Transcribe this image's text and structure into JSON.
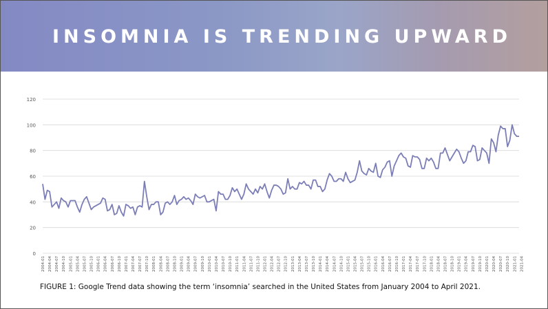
{
  "slide": {
    "title": "INSOMNIA IS TRENDING UPWARD",
    "caption": "FIGURE 1: Google Trend data showing the term ‘insomnia’ searched in the United States from January 2004 to April 2021."
  },
  "colors": {
    "line": "#7b7db6",
    "grid": "#d9d9d9",
    "axis_text": "#555555"
  },
  "chart_data": {
    "type": "line",
    "title": "",
    "xlabel": "",
    "ylabel": "",
    "ylim": [
      0,
      120
    ],
    "yticks": [
      0,
      20,
      40,
      60,
      80,
      100,
      120
    ],
    "grid": true,
    "x_start": "2004-01",
    "x_tick_labels": [
      "2004-01",
      "2004-04",
      "2004-07",
      "2004-10",
      "2005-01",
      "2005-04",
      "2005-07",
      "2005-10",
      "2006-01",
      "2006-04",
      "2006-07",
      "2006-10",
      "2007-01",
      "2007-04",
      "2007-07",
      "2007-10",
      "2008-01",
      "2008-04",
      "2008-07",
      "2008-10",
      "2009-01",
      "2009-04",
      "2009-07",
      "2009-10",
      "2010-01",
      "2010-04",
      "2010-07",
      "2010-10",
      "2011-01",
      "2011-04",
      "2011-07",
      "2011-10",
      "2012-01",
      "2012-04",
      "2012-07",
      "2012-10",
      "2013-01",
      "2013-04",
      "2013-07",
      "2013-10",
      "2014-01",
      "2014-04",
      "2014-07",
      "2014-10",
      "2015-01",
      "2015-04",
      "2015-07",
      "2015-10",
      "2016-01",
      "2016-04",
      "2016-07",
      "2016-10",
      "2017-01",
      "2017-04",
      "2017-07",
      "2017-10",
      "2018-01",
      "2018-04",
      "2018-07",
      "2018-10",
      "2019-01",
      "2019-04",
      "2019-07",
      "2019-10",
      "2020-01",
      "2020-04",
      "2020-07",
      "2020-10",
      "2021-01",
      "2021-04"
    ],
    "series": [
      {
        "values": [
          54,
          42,
          49,
          48,
          36,
          38,
          40,
          35,
          43,
          41,
          40,
          36,
          41,
          41,
          41,
          36,
          32,
          38,
          42,
          44,
          39,
          34,
          36,
          37,
          38,
          39,
          43,
          42,
          33,
          34,
          38,
          30,
          31,
          37,
          32,
          29,
          38,
          37,
          35,
          36,
          30,
          36,
          37,
          36,
          56,
          44,
          34,
          38,
          38,
          40,
          40,
          30,
          32,
          39,
          40,
          38,
          40,
          45,
          38,
          41,
          42,
          44,
          42,
          43,
          41,
          38,
          46,
          44,
          43,
          44,
          45,
          40,
          40,
          41,
          42,
          33,
          48,
          46,
          46,
          42,
          42,
          45,
          51,
          48,
          50,
          46,
          42,
          46,
          54,
          50,
          48,
          46,
          50,
          47,
          52,
          50,
          54,
          48,
          43,
          49,
          53,
          53,
          52,
          50,
          46,
          47,
          58,
          50,
          52,
          50,
          50,
          55,
          54,
          56,
          53,
          53,
          50,
          57,
          57,
          52,
          52,
          48,
          50,
          57,
          62,
          60,
          56,
          56,
          58,
          58,
          56,
          63,
          58,
          55,
          56,
          57,
          63,
          72,
          64,
          62,
          61,
          66,
          64,
          63,
          70,
          60,
          59,
          65,
          67,
          71,
          72,
          60,
          68,
          72,
          76,
          78,
          75,
          74,
          68,
          67,
          76,
          75,
          75,
          73,
          66,
          66,
          74,
          72,
          74,
          71,
          66,
          66,
          78,
          78,
          82,
          77,
          72,
          75,
          78,
          81,
          79,
          74,
          70,
          72,
          79,
          79,
          84,
          83,
          72,
          73,
          82,
          80,
          78,
          70,
          89,
          86,
          79,
          92,
          99,
          97,
          97,
          83,
          88,
          100,
          93,
          91,
          91
        ]
      }
    ]
  }
}
